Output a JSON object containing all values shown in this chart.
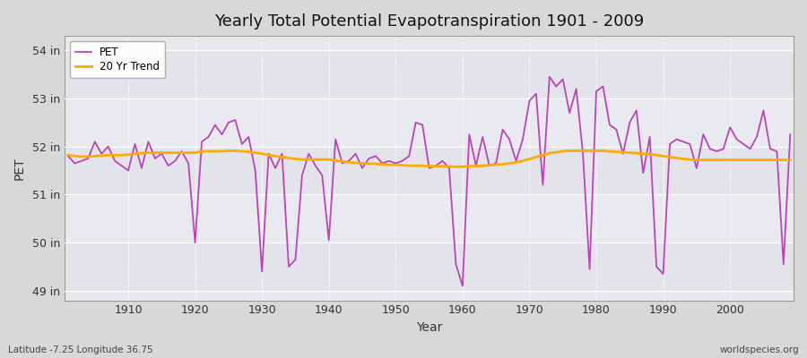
{
  "title": "Yearly Total Potential Evapotranspiration 1901 - 2009",
  "xlabel": "Year",
  "ylabel": "PET",
  "footnote_left": "Latitude -7.25 Longitude 36.75",
  "footnote_right": "worldspecies.org",
  "ylim": [
    48.8,
    54.3
  ],
  "yticks": [
    49,
    50,
    51,
    52,
    53,
    54
  ],
  "ytick_labels": [
    "49 in",
    "50 in",
    "51 in",
    "52 in",
    "53 in",
    "54 in"
  ],
  "xlim": [
    1900.5,
    2009.5
  ],
  "xticks": [
    1910,
    1920,
    1930,
    1940,
    1950,
    1960,
    1970,
    1980,
    1990,
    2000
  ],
  "pet_color": "#bb44bb",
  "trend_color": "#ffaa00",
  "fig_bg_color": "#d8d8d8",
  "plot_bg_color": "#e8e8ee",
  "grid_color": "#ffffff",
  "years": [
    1901,
    1902,
    1903,
    1904,
    1905,
    1906,
    1907,
    1908,
    1909,
    1910,
    1911,
    1912,
    1913,
    1914,
    1915,
    1916,
    1917,
    1918,
    1919,
    1920,
    1921,
    1922,
    1923,
    1924,
    1925,
    1926,
    1927,
    1928,
    1929,
    1930,
    1931,
    1932,
    1933,
    1934,
    1935,
    1936,
    1937,
    1938,
    1939,
    1940,
    1941,
    1942,
    1943,
    1944,
    1945,
    1946,
    1947,
    1948,
    1949,
    1950,
    1951,
    1952,
    1953,
    1954,
    1955,
    1956,
    1957,
    1958,
    1959,
    1960,
    1961,
    1962,
    1963,
    1964,
    1965,
    1966,
    1967,
    1968,
    1969,
    1970,
    1971,
    1972,
    1973,
    1974,
    1975,
    1976,
    1977,
    1978,
    1979,
    1980,
    1981,
    1982,
    1983,
    1984,
    1985,
    1986,
    1987,
    1988,
    1989,
    1990,
    1991,
    1992,
    1993,
    1994,
    1995,
    1996,
    1997,
    1998,
    1999,
    2000,
    2001,
    2002,
    2003,
    2004,
    2005,
    2006,
    2007,
    2008,
    2009
  ],
  "pet_values": [
    51.8,
    51.65,
    51.7,
    51.75,
    52.1,
    51.85,
    52.0,
    51.7,
    51.6,
    51.5,
    52.05,
    51.55,
    52.1,
    51.75,
    51.85,
    51.6,
    51.7,
    51.9,
    51.65,
    50.0,
    52.1,
    52.2,
    52.45,
    52.25,
    52.5,
    52.55,
    52.05,
    52.2,
    51.5,
    49.4,
    51.85,
    51.55,
    51.85,
    49.5,
    49.65,
    51.4,
    51.85,
    51.6,
    51.4,
    50.05,
    52.15,
    51.65,
    51.7,
    51.85,
    51.55,
    51.75,
    51.8,
    51.65,
    51.7,
    51.65,
    51.7,
    51.8,
    52.5,
    52.45,
    51.55,
    51.6,
    51.7,
    51.55,
    49.55,
    49.1,
    52.25,
    51.6,
    52.2,
    51.6,
    51.65,
    52.35,
    52.15,
    51.7,
    52.15,
    52.95,
    53.1,
    51.2,
    53.45,
    53.25,
    53.4,
    52.7,
    53.2,
    51.85,
    49.45,
    53.15,
    53.25,
    52.45,
    52.35,
    51.85,
    52.5,
    52.75,
    51.45,
    52.2,
    49.5,
    49.35,
    52.05,
    52.15,
    52.1,
    52.05,
    51.55,
    52.25,
    51.95,
    51.9,
    51.95,
    52.4,
    52.15,
    52.05,
    51.95,
    52.2,
    52.75,
    51.95,
    51.9,
    49.55,
    52.25
  ],
  "trend_values": [
    51.82,
    51.8,
    51.79,
    51.79,
    51.8,
    51.81,
    51.82,
    51.82,
    51.82,
    51.83,
    51.85,
    51.86,
    51.87,
    51.87,
    51.87,
    51.87,
    51.87,
    51.87,
    51.87,
    51.87,
    51.9,
    51.9,
    51.9,
    51.9,
    51.91,
    51.91,
    51.9,
    51.89,
    51.87,
    51.85,
    51.82,
    51.8,
    51.78,
    51.76,
    51.74,
    51.73,
    51.73,
    51.73,
    51.73,
    51.73,
    51.71,
    51.69,
    51.67,
    51.66,
    51.65,
    51.64,
    51.64,
    51.63,
    51.62,
    51.62,
    51.61,
    51.6,
    51.6,
    51.6,
    51.59,
    51.59,
    51.59,
    51.58,
    51.58,
    51.58,
    51.59,
    51.59,
    51.6,
    51.61,
    51.62,
    51.63,
    51.65,
    51.67,
    51.7,
    51.74,
    51.78,
    51.82,
    51.86,
    51.88,
    51.9,
    51.91,
    51.91,
    51.91,
    51.91,
    51.91,
    51.91,
    51.9,
    51.89,
    51.88,
    51.87,
    51.86,
    51.85,
    51.84,
    51.82,
    51.8,
    51.78,
    51.76,
    51.74,
    51.73,
    51.72,
    51.72,
    51.72,
    51.72,
    51.72,
    51.72,
    51.72,
    51.72,
    51.72,
    51.72,
    51.72,
    51.72,
    51.72,
    51.72,
    51.72
  ]
}
